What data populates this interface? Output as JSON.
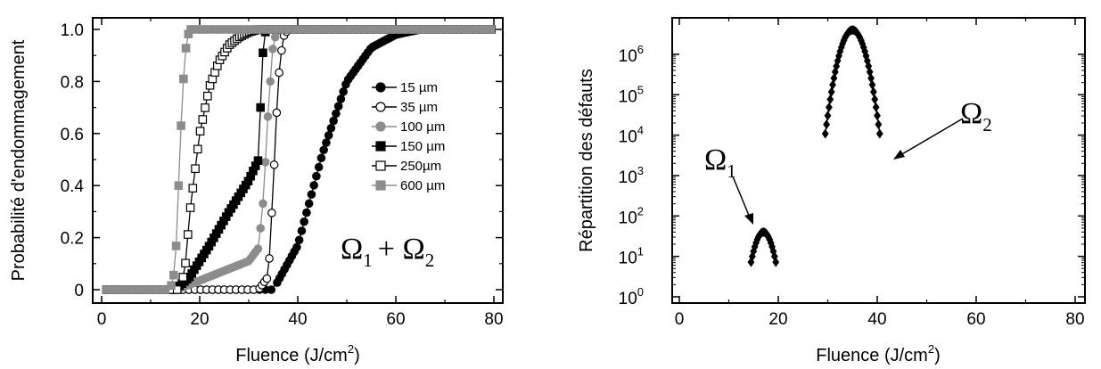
{
  "chart_data": [
    {
      "type": "line",
      "xlabel_main": "Fluence (J/cm",
      "xlabel_sup": "2",
      "xlabel_end": ")",
      "ylabel": "Probabilité d'endommagement",
      "xlim": [
        0,
        80
      ],
      "ylim": [
        0,
        1.0
      ],
      "xticks": [
        0,
        20,
        40,
        60,
        80
      ],
      "yticks": [
        0,
        0.2,
        0.4,
        0.6,
        0.8,
        1.0
      ],
      "ytick_labels": [
        "0",
        "0.2",
        "0.4",
        "0.6",
        "0.8",
        "1.0"
      ],
      "legend_position": "center-right",
      "annotation": {
        "omega": "Ω",
        "sub1": "1",
        "plus": "+ ",
        "sub2": "2"
      },
      "series": [
        {
          "name": "15 µm",
          "marker": "circle-filled",
          "color": "#000000",
          "x": [
            35,
            40,
            45,
            50,
            55,
            60,
            65,
            80
          ],
          "y": [
            0.0,
            0.17,
            0.52,
            0.8,
            0.93,
            0.98,
            1.0,
            1.0
          ]
        },
        {
          "name": "35 µm",
          "marker": "circle-open",
          "color": "#000000",
          "x": [
            32,
            34,
            35,
            36,
            37,
            38,
            80
          ],
          "y": [
            0.0,
            0.05,
            0.4,
            0.8,
            0.97,
            1.0,
            1.0
          ]
        },
        {
          "name": "100 µm",
          "marker": "circle-filled",
          "color": "#8c8c8c",
          "x": [
            15,
            18,
            22,
            26,
            30,
            32,
            33,
            34,
            35,
            36,
            80
          ],
          "y": [
            0.0,
            0.02,
            0.05,
            0.08,
            0.11,
            0.16,
            0.35,
            0.7,
            0.95,
            1.0,
            1.0
          ]
        },
        {
          "name": "150 µm",
          "marker": "square-filled",
          "color": "#000000",
          "x": [
            15,
            18,
            22,
            26,
            30,
            32,
            32.5,
            33,
            33.5,
            80
          ],
          "y": [
            0.0,
            0.05,
            0.17,
            0.3,
            0.42,
            0.5,
            0.75,
            0.95,
            1.0,
            1.0
          ]
        },
        {
          "name": "250µm",
          "marker": "square-open",
          "color": "#000000",
          "x": [
            16,
            17,
            18,
            20,
            22,
            24,
            26,
            28,
            30,
            32,
            80
          ],
          "y": [
            0.0,
            0.08,
            0.3,
            0.6,
            0.78,
            0.88,
            0.94,
            0.97,
            0.99,
            1.0,
            1.0
          ]
        },
        {
          "name": "600 µm",
          "marker": "square-filled",
          "color": "#8c8c8c",
          "x": [
            14,
            15,
            15.5,
            16,
            16.5,
            17,
            17.5,
            18,
            80
          ],
          "y": [
            0.0,
            0.08,
            0.3,
            0.55,
            0.75,
            0.9,
            0.97,
            1.0,
            1.0
          ]
        }
      ]
    },
    {
      "type": "line",
      "xlabel_main": "Fluence (J/cm",
      "xlabel_sup": "2",
      "xlabel_end": ")",
      "ylabel": "Répartition des défauts",
      "xlim": [
        0,
        80
      ],
      "yscale": "log",
      "ylim": [
        0.7,
        8000000
      ],
      "xticks": [
        0,
        20,
        40,
        60,
        80
      ],
      "ytick_base": "10",
      "ytick_exponents": [
        0,
        1,
        2,
        3,
        4,
        5,
        6
      ],
      "annotations": [
        {
          "omega": "Ω",
          "sub": "1"
        },
        {
          "omega": "Ω",
          "sub": "2"
        }
      ],
      "series": [
        {
          "name": "",
          "marker": "diamond-filled",
          "color": "#000000",
          "peaks": [
            {
              "center": 17,
              "sigma": 1.35,
              "amplitude": 40,
              "x_start": 14.5,
              "x_end": 19.5
            },
            {
              "center": 35,
              "sigma": 1.6,
              "amplitude": 4000000,
              "x_start": 29.5,
              "x_end": 40.5
            }
          ]
        }
      ]
    }
  ]
}
